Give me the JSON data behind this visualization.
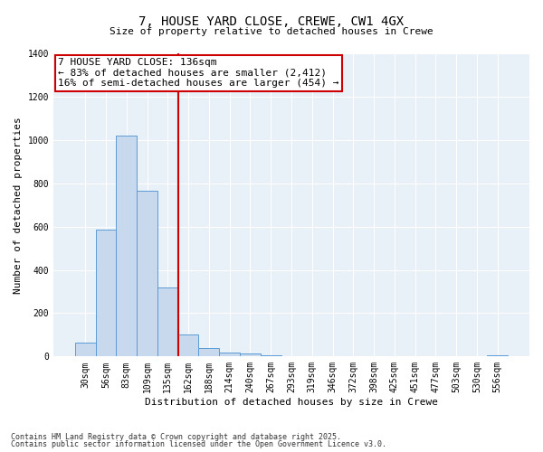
{
  "title": "7, HOUSE YARD CLOSE, CREWE, CW1 4GX",
  "subtitle": "Size of property relative to detached houses in Crewe",
  "xlabel": "Distribution of detached houses by size in Crewe",
  "ylabel": "Number of detached properties",
  "bar_color": "#c9d9ed",
  "bar_edge_color": "#5b9bd5",
  "bg_color": "#e8f0f8",
  "grid_color": "#ffffff",
  "categories": [
    "30sqm",
    "56sqm",
    "83sqm",
    "109sqm",
    "135sqm",
    "162sqm",
    "188sqm",
    "214sqm",
    "240sqm",
    "267sqm",
    "293sqm",
    "319sqm",
    "346sqm",
    "372sqm",
    "398sqm",
    "425sqm",
    "451sqm",
    "477sqm",
    "503sqm",
    "530sqm",
    "556sqm"
  ],
  "values": [
    65,
    585,
    1020,
    765,
    320,
    100,
    40,
    20,
    15,
    5,
    3,
    2,
    1,
    1,
    1,
    1,
    0,
    0,
    0,
    0,
    5
  ],
  "ylim": [
    0,
    1400
  ],
  "yticks": [
    0,
    200,
    400,
    600,
    800,
    1000,
    1200,
    1400
  ],
  "vline_x": 4.5,
  "annotation_title": "7 HOUSE YARD CLOSE: 136sqm",
  "annotation_line1": "← 83% of detached houses are smaller (2,412)",
  "annotation_line2": "16% of semi-detached houses are larger (454) →",
  "annotation_box_color": "#ffffff",
  "annotation_border_color": "#cc0000",
  "vline_color": "#cc0000",
  "footer1": "Contains HM Land Registry data © Crown copyright and database right 2025.",
  "footer2": "Contains public sector information licensed under the Open Government Licence v3.0.",
  "title_fontsize": 10,
  "subtitle_fontsize": 8,
  "ylabel_fontsize": 8,
  "xlabel_fontsize": 8,
  "tick_fontsize": 7,
  "footer_fontsize": 6,
  "annotation_fontsize": 8
}
